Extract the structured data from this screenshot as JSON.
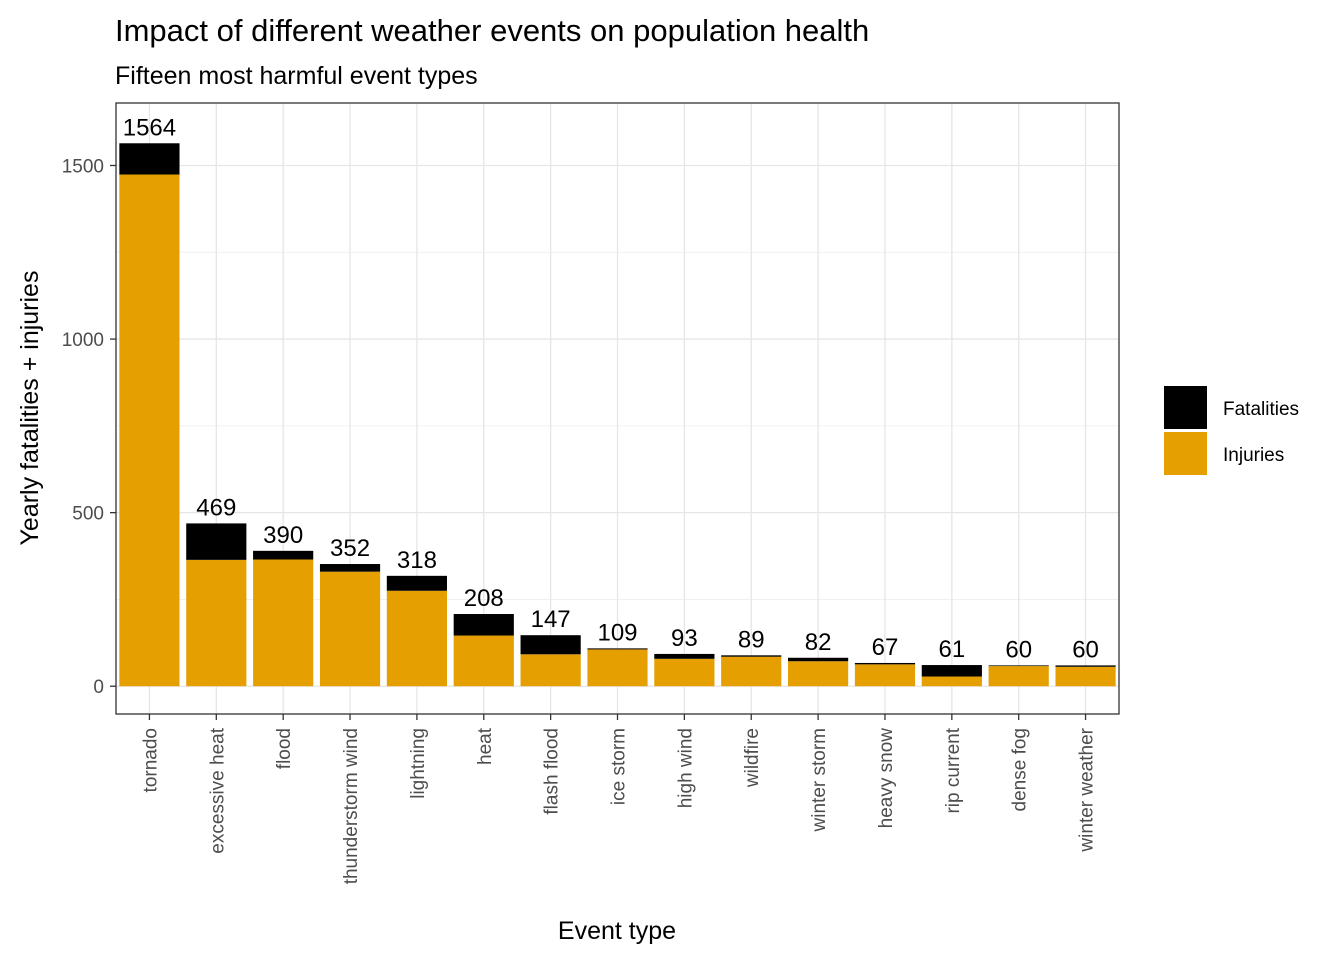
{
  "chart_data": {
    "type": "bar",
    "stacked": true,
    "title": "Impact of different weather events on population health",
    "subtitle": "Fifteen most harmful event types",
    "xlabel": "Event type",
    "ylabel": "Yearly fatalities + injuries",
    "ylim": [
      -80,
      1680
    ],
    "yticks": [
      0,
      500,
      1000,
      1500
    ],
    "grid": true,
    "legend_position": "right",
    "categories": [
      "tornado",
      "excessive heat",
      "flood",
      "thunderstorm wind",
      "lightning",
      "heat",
      "flash flood",
      "ice storm",
      "high wind",
      "wildfire",
      "winter storm",
      "heavy snow",
      "rip current",
      "dense fog",
      "winter weather"
    ],
    "totals": [
      1564,
      469,
      390,
      352,
      318,
      208,
      147,
      109,
      93,
      89,
      82,
      67,
      61,
      60,
      60
    ],
    "series": [
      {
        "name": "Fatalities",
        "color": "#000000",
        "values": [
          90,
          105,
          25,
          22,
          43,
          62,
          55,
          3,
          14,
          4,
          10,
          4,
          33,
          2,
          4
        ]
      },
      {
        "name": "Injuries",
        "color": "#E69F00",
        "values": [
          1474,
          364,
          365,
          330,
          275,
          146,
          92,
          106,
          79,
          85,
          72,
          63,
          28,
          58,
          56
        ]
      }
    ]
  }
}
